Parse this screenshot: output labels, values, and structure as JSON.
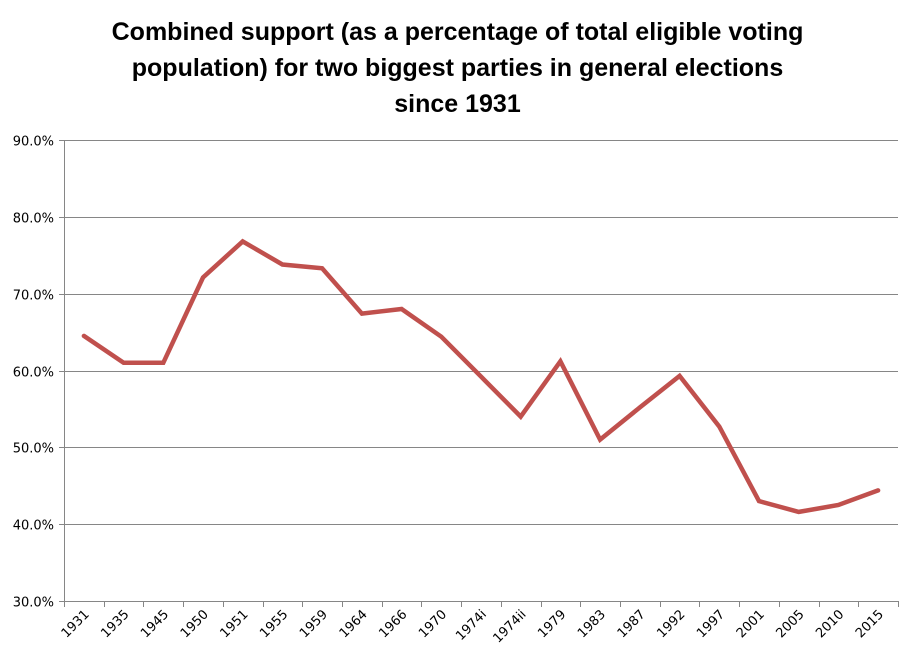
{
  "chart_data": {
    "type": "line",
    "title": "Combined support (as a percentage of total eligible voting population) for two biggest parties in general elections since 1931",
    "title_lines": [
      "Combined support (as a percentage of total eligible voting",
      "population) for two biggest parties in general elections",
      "since 1931"
    ],
    "xlabel": "",
    "ylabel": "",
    "categories": [
      "1931",
      "1935",
      "1945",
      "1950",
      "1951",
      "1955",
      "1959",
      "1964",
      "1966",
      "1970",
      "1974i",
      "1974ii",
      "1979",
      "1983",
      "1987",
      "1992",
      "1997",
      "2001",
      "2005",
      "2010",
      "2015"
    ],
    "series": [
      {
        "name": "Combined support",
        "color": "#c0504d",
        "values": [
          64.5,
          61.0,
          61.0,
          72.1,
          76.8,
          73.8,
          73.3,
          67.4,
          68.0,
          64.4,
          59.2,
          54.0,
          61.2,
          51.0,
          55.2,
          59.3,
          52.7,
          43.0,
          41.6,
          42.5,
          44.4
        ]
      }
    ],
    "ylim": [
      30,
      90
    ],
    "yticks": [
      30,
      40,
      50,
      60,
      70,
      80,
      90
    ],
    "ytick_labels": [
      "30.0%",
      "40.0%",
      "50.0%",
      "60.0%",
      "70.0%",
      "80.0%",
      "90.0%"
    ],
    "grid": true,
    "legend": "none"
  }
}
